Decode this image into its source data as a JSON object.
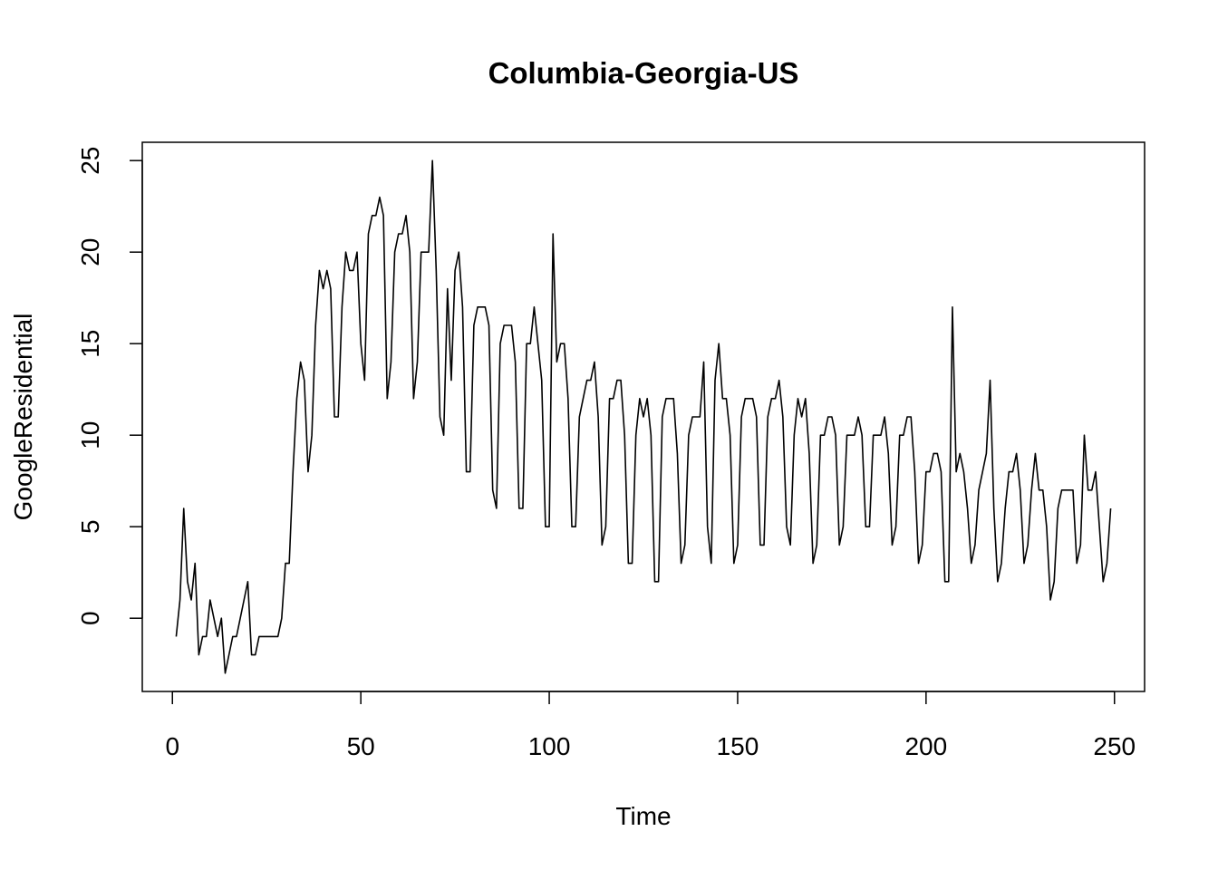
{
  "chart_data": {
    "type": "line",
    "title": "Columbia-Georgia-US",
    "xlabel": "Time",
    "ylabel": "GoogleResidential",
    "xlim": [
      -8,
      258
    ],
    "ylim": [
      -4,
      26
    ],
    "x_ticks": [
      0,
      50,
      100,
      150,
      200,
      250
    ],
    "y_ticks": [
      0,
      5,
      10,
      15,
      20,
      25
    ],
    "x_tick_labels": [
      "0",
      "50",
      "100",
      "150",
      "200",
      "250"
    ],
    "y_tick_labels": [
      "0",
      "5",
      "10",
      "15",
      "20",
      "25"
    ],
    "grid": false,
    "series": [
      {
        "x_start": 1,
        "values": [
          -1,
          1,
          6,
          2,
          1,
          3,
          -2,
          -1,
          -1,
          1,
          0,
          -1,
          0,
          -3,
          -2,
          -1,
          -1,
          0,
          1,
          2,
          -2,
          -2,
          -1,
          -1,
          -1,
          -1,
          -1,
          -1,
          0,
          3,
          3,
          8,
          12,
          14,
          13,
          8,
          10,
          16,
          19,
          18,
          19,
          18,
          11,
          11,
          17,
          20,
          19,
          19,
          20,
          15,
          13,
          21,
          22,
          22,
          23,
          22,
          12,
          14,
          20,
          21,
          21,
          22,
          20,
          12,
          14,
          20,
          20,
          20,
          25,
          19,
          11,
          10,
          18,
          13,
          19,
          20,
          17,
          8,
          8,
          16,
          17,
          17,
          17,
          16,
          7,
          6,
          15,
          16,
          16,
          16,
          14,
          6,
          6,
          15,
          15,
          17,
          15,
          13,
          5,
          5,
          21,
          14,
          15,
          15,
          12,
          5,
          5,
          11,
          12,
          13,
          13,
          14,
          11,
          4,
          5,
          12,
          12,
          13,
          13,
          10,
          3,
          3,
          10,
          12,
          11,
          12,
          10,
          2,
          2,
          11,
          12,
          12,
          12,
          9,
          3,
          4,
          10,
          11,
          11,
          11,
          14,
          5,
          3,
          13,
          15,
          12,
          12,
          10,
          3,
          4,
          11,
          12,
          12,
          12,
          11,
          4,
          4,
          11,
          12,
          12,
          13,
          11,
          5,
          4,
          10,
          12,
          11,
          12,
          9,
          3,
          4,
          10,
          10,
          11,
          11,
          10,
          4,
          5,
          10,
          10,
          10,
          11,
          10,
          5,
          5,
          10,
          10,
          10,
          11,
          9,
          4,
          5,
          10,
          10,
          11,
          11,
          8,
          3,
          4,
          8,
          8,
          9,
          9,
          8,
          2,
          2,
          17,
          8,
          9,
          8,
          6,
          3,
          4,
          7,
          8,
          9,
          13,
          6,
          2,
          3,
          6,
          8,
          8,
          9,
          7,
          3,
          4,
          7,
          9,
          7,
          7,
          5,
          1,
          2,
          6,
          7,
          7,
          7,
          7,
          3,
          4,
          10,
          7,
          7,
          8,
          5,
          2,
          3,
          6
        ]
      }
    ]
  }
}
